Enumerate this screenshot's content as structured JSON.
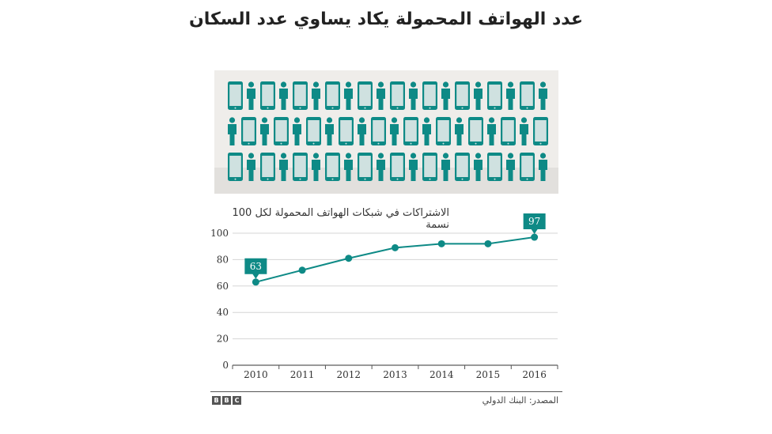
{
  "header": {
    "title": "عدد الهواتف المحمولة يكاد يساوي عدد السكان"
  },
  "illustration": {
    "icons": [
      "phone-icon",
      "person-icon"
    ],
    "colors": {
      "teal": "#0e8a86",
      "screen": "#cfe1e0",
      "background": "#efedea",
      "floor": "#e2e0dd"
    }
  },
  "chart_data": {
    "type": "line",
    "title": "الاشتراكات في شبكات الهواتف المحمولة لكل 100 نسمة",
    "x": [
      "2010",
      "2011",
      "2012",
      "2013",
      "2014",
      "2015",
      "2016"
    ],
    "series": [
      {
        "values": [
          63,
          72,
          81,
          89,
          92,
          92,
          97
        ]
      }
    ],
    "ylim": [
      0,
      100
    ],
    "yticks": [
      0,
      20,
      40,
      60,
      80,
      100
    ],
    "grid": true,
    "annotations": [
      {
        "x": "2010",
        "label": "63"
      },
      {
        "x": "2016",
        "label": "97"
      }
    ],
    "color": "#0e8a86"
  },
  "footer": {
    "logo_letters": [
      "B",
      "B",
      "C"
    ],
    "source": "المصدر: البنك الدولي"
  }
}
